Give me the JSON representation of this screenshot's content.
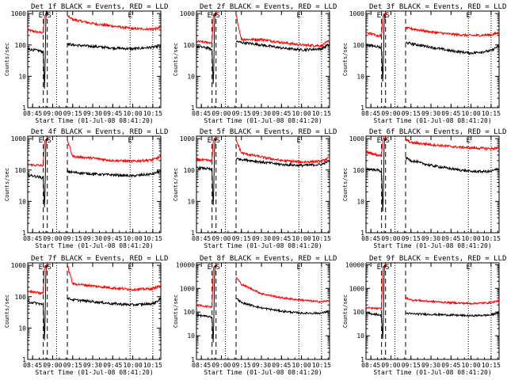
{
  "panels": [
    {
      "title": "Det 1f BLACK = Events, RED = LLD",
      "xlabel": "Start Time (01-Jul-08 08:41:20)",
      "ylabel": "Counts/sec",
      "xticks": [
        "08:45",
        "09:00",
        "09:15",
        "09:30",
        "09:45",
        "10:00",
        "10:15"
      ],
      "yticks": [
        "1",
        "10",
        "100",
        "1000"
      ],
      "markers": [
        "E",
        "S",
        "E"
      ]
    },
    {
      "title": "Det 2f BLACK = Events, RED = LLD",
      "xlabel": "Start Time (01-Jul-08 08:41:20)",
      "ylabel": "Counts/sec",
      "xticks": [
        "08:45",
        "09:00",
        "09:15",
        "09:30",
        "09:45",
        "10:00",
        "10:15"
      ],
      "yticks": [
        "1",
        "10",
        "100",
        "1000"
      ],
      "markers": [
        "E",
        "S",
        "E"
      ]
    },
    {
      "title": "Det 3f BLACK = Events, RED = LLD",
      "xlabel": "Start Time (01-Jul-08 08:41:20)",
      "ylabel": "Counts/sec",
      "xticks": [
        "08:45",
        "09:00",
        "09:15",
        "09:30",
        "09:45",
        "10:00",
        "10:15"
      ],
      "yticks": [
        "1",
        "10",
        "100",
        "1000"
      ],
      "markers": [
        "E",
        "S",
        "E"
      ]
    },
    {
      "title": "Det 4f BLACK = Events, RED = LLD",
      "xlabel": "Start Time (01-Jul-08 08:41:20)",
      "ylabel": "Counts/sec",
      "xticks": [
        "08:45",
        "09:00",
        "09:15",
        "09:30",
        "09:45",
        "10:00",
        "10:15"
      ],
      "yticks": [
        "1",
        "10",
        "100",
        "1000"
      ],
      "markers": [
        "E",
        "S",
        "E"
      ]
    },
    {
      "title": "Det 5f BLACK = Events, RED = LLD",
      "xlabel": "Start Time (01-Jul-08 08:41:20)",
      "ylabel": "Counts/sec",
      "xticks": [
        "08:45",
        "09:00",
        "09:15",
        "09:30",
        "09:45",
        "10:00",
        "10:15"
      ],
      "yticks": [
        "1",
        "10",
        "100",
        "1000"
      ],
      "markers": [
        "E",
        "S",
        "E"
      ]
    },
    {
      "title": "Det 6f BLACK = Events, RED = LLD",
      "xlabel": "Start Time (01-Jul-08 08:41:20)",
      "ylabel": "Counts/sec",
      "xticks": [
        "08:45",
        "09:00",
        "09:15",
        "09:30",
        "09:45",
        "10:00",
        "10:15"
      ],
      "yticks": [
        "1",
        "10",
        "100",
        "1000"
      ],
      "markers": [
        "E",
        "S",
        "E"
      ]
    },
    {
      "title": "Det 7f BLACK = Events, RED = LLD",
      "xlabel": "Start Time (01-Jul-08 08:41:20)",
      "ylabel": "Counts/sec",
      "xticks": [
        "08:45",
        "09:00",
        "09:15",
        "09:30",
        "09:45",
        "10:00",
        "10:15"
      ],
      "yticks": [
        "1",
        "10",
        "100",
        "1000"
      ],
      "markers": [
        "E",
        "S",
        "E"
      ]
    },
    {
      "title": "Det 8f BLACK = Events, RED = LLD",
      "xlabel": "Start Time (01-Jul-08 08:41:20)",
      "ylabel": "Counts/sec",
      "xticks": [
        "08:45",
        "09:00",
        "09:15",
        "09:30",
        "09:45",
        "10:00",
        "10:15"
      ],
      "yticks": [
        "1",
        "10",
        "100",
        "1000",
        "10000"
      ],
      "markers": [
        "E",
        "S",
        "E"
      ]
    },
    {
      "title": "Det 9f BLACK = Events, RED = LLD",
      "xlabel": "Start Time (01-Jul-08 08:41:20)",
      "ylabel": "Counts/sec",
      "xticks": [
        "08:45",
        "09:00",
        "09:15",
        "09:30",
        "09:45",
        "10:00",
        "10:15"
      ],
      "yticks": [
        "1",
        "10",
        "100",
        "1000",
        "10000"
      ],
      "markers": [
        "E",
        "S",
        "E"
      ]
    }
  ],
  "colors": {
    "events": "#000000",
    "lld": "#ff0000",
    "axes": "#000000",
    "background": "#ffffff"
  },
  "chart_data": [
    {
      "type": "line",
      "title": "Det 1f BLACK = Events, RED = LLD",
      "xlabel": "Start Time (01-Jul-08 08:41:20)",
      "ylabel": "Counts/sec",
      "yscale": "log",
      "xlim": [
        "08:41",
        "10:21"
      ],
      "ylim": [
        1,
        1200
      ],
      "grid": false,
      "vlines_dashed": [
        "08:53",
        "08:56",
        "09:11"
      ],
      "vlines_dotted": [
        "09:03",
        "09:58",
        "10:15"
      ],
      "series": [
        {
          "name": "LLD",
          "color": "#ff0000",
          "x": [
            "08:41",
            "08:50",
            "08:53",
            "08:54",
            "08:56",
            "09:11",
            "09:15",
            "09:30",
            "09:45",
            "10:00",
            "10:15",
            "10:20"
          ],
          "values": [
            300,
            250,
            250,
            900,
            1000,
            850,
            650,
            480,
            400,
            330,
            320,
            350
          ]
        },
        {
          "name": "Events",
          "color": "#000000",
          "x": [
            "08:41",
            "08:50",
            "08:53",
            "08:54",
            "08:55",
            "08:56",
            "09:11",
            "09:15",
            "09:30",
            "09:45",
            "10:00",
            "10:15",
            "10:20"
          ],
          "values": [
            75,
            65,
            60,
            3,
            1100,
            1000,
            110,
            100,
            90,
            80,
            75,
            85,
            90
          ]
        }
      ]
    },
    {
      "type": "line",
      "title": "Det 2f BLACK = Events, RED = LLD",
      "xlabel": "Start Time (01-Jul-08 08:41:20)",
      "ylabel": "Counts/sec",
      "yscale": "log",
      "xlim": [
        "08:41",
        "10:21"
      ],
      "ylim": [
        1,
        1200
      ],
      "grid": false,
      "vlines_dashed": [
        "08:53",
        "08:56",
        "09:11"
      ],
      "vlines_dotted": [
        "09:03",
        "09:58",
        "10:15"
      ],
      "series": [
        {
          "name": "LLD",
          "color": "#ff0000",
          "x": [
            "08:41",
            "08:50",
            "08:53",
            "08:54",
            "08:56",
            "09:11",
            "09:15",
            "09:30",
            "09:45",
            "10:00",
            "10:15",
            "10:20"
          ],
          "values": [
            130,
            120,
            120,
            900,
            1000,
            900,
            150,
            150,
            120,
            100,
            95,
            130
          ]
        },
        {
          "name": "Events",
          "color": "#000000",
          "x": [
            "08:41",
            "08:50",
            "08:53",
            "08:54",
            "08:55",
            "08:56",
            "09:11",
            "09:15",
            "09:30",
            "09:45",
            "10:00",
            "10:15",
            "10:20"
          ],
          "values": [
            90,
            80,
            70,
            4,
            1000,
            900,
            130,
            120,
            100,
            80,
            70,
            75,
            100
          ]
        }
      ]
    },
    {
      "type": "line",
      "title": "Det 3f BLACK = Events, RED = LLD",
      "xlabel": "Start Time (01-Jul-08 08:41:20)",
      "ylabel": "Counts/sec",
      "yscale": "log",
      "xlim": [
        "08:41",
        "10:21"
      ],
      "ylim": [
        1,
        1200
      ],
      "grid": false,
      "vlines_dashed": [
        "08:53",
        "08:56",
        "09:11"
      ],
      "vlines_dotted": [
        "09:03",
        "09:58",
        "10:15"
      ],
      "series": [
        {
          "name": "LLD",
          "color": "#ff0000",
          "x": [
            "08:41",
            "08:50",
            "08:53",
            "08:54",
            "08:56",
            "09:11",
            "09:15",
            "09:30",
            "09:45",
            "10:00",
            "10:15",
            "10:20"
          ],
          "values": [
            250,
            200,
            200,
            900,
            1000,
            350,
            330,
            260,
            220,
            200,
            210,
            240
          ]
        },
        {
          "name": "Events",
          "color": "#000000",
          "x": [
            "08:41",
            "08:50",
            "08:53",
            "08:54",
            "08:55",
            "08:56",
            "09:11",
            "09:15",
            "09:30",
            "09:45",
            "10:00",
            "10:15",
            "10:20"
          ],
          "values": [
            100,
            90,
            80,
            5,
            900,
            800,
            120,
            110,
            85,
            65,
            55,
            65,
            90
          ]
        }
      ]
    },
    {
      "type": "line",
      "title": "Det 4f BLACK = Events, RED = LLD",
      "xlabel": "Start Time (01-Jul-08 08:41:20)",
      "ylabel": "Counts/sec",
      "yscale": "log",
      "xlim": [
        "08:41",
        "10:21"
      ],
      "ylim": [
        1,
        1200
      ],
      "grid": false,
      "vlines_dashed": [
        "08:53",
        "08:56",
        "09:11"
      ],
      "vlines_dotted": [
        "09:03",
        "09:58",
        "10:15"
      ],
      "series": [
        {
          "name": "LLD",
          "color": "#ff0000",
          "x": [
            "08:41",
            "08:50",
            "08:53",
            "08:54",
            "08:56",
            "09:11",
            "09:15",
            "09:30",
            "09:45",
            "10:00",
            "10:15",
            "10:20"
          ],
          "values": [
            150,
            140,
            140,
            800,
            1000,
            900,
            270,
            240,
            200,
            190,
            210,
            260
          ]
        },
        {
          "name": "Events",
          "color": "#000000",
          "x": [
            "08:41",
            "08:50",
            "08:53",
            "08:54",
            "08:55",
            "08:56",
            "09:11",
            "09:15",
            "09:30",
            "09:45",
            "10:00",
            "10:15",
            "10:20"
          ],
          "values": [
            70,
            60,
            55,
            5,
            1000,
            900,
            90,
            85,
            75,
            70,
            65,
            75,
            90
          ]
        }
      ]
    },
    {
      "type": "line",
      "title": "Det 5f BLACK = Events, RED = LLD",
      "xlabel": "Start Time (01-Jul-08 08:41:20)",
      "ylabel": "Counts/sec",
      "yscale": "log",
      "xlim": [
        "08:41",
        "10:21"
      ],
      "ylim": [
        1,
        1200
      ],
      "grid": false,
      "vlines_dashed": [
        "08:53",
        "08:56",
        "09:11"
      ],
      "vlines_dotted": [
        "09:03",
        "09:58",
        "10:15"
      ],
      "series": [
        {
          "name": "LLD",
          "color": "#ff0000",
          "x": [
            "08:41",
            "08:50",
            "08:53",
            "08:54",
            "08:56",
            "09:11",
            "09:15",
            "09:30",
            "09:45",
            "10:00",
            "10:15",
            "10:20"
          ],
          "values": [
            220,
            200,
            200,
            900,
            1000,
            900,
            350,
            260,
            200,
            180,
            190,
            240
          ]
        },
        {
          "name": "Events",
          "color": "#000000",
          "x": [
            "08:41",
            "08:50",
            "08:53",
            "08:54",
            "08:55",
            "08:56",
            "09:11",
            "09:15",
            "09:30",
            "09:45",
            "10:00",
            "10:15",
            "10:20"
          ],
          "values": [
            120,
            110,
            100,
            5,
            1000,
            900,
            230,
            220,
            180,
            150,
            140,
            150,
            190
          ]
        }
      ]
    },
    {
      "type": "line",
      "title": "Det 6f BLACK = Events, RED = LLD",
      "xlabel": "Start Time (01-Jul-08 08:41:20)",
      "ylabel": "Counts/sec",
      "yscale": "log",
      "xlim": [
        "08:41",
        "10:21"
      ],
      "ylim": [
        1,
        1200
      ],
      "grid": false,
      "vlines_dashed": [
        "08:53",
        "08:56",
        "09:11"
      ],
      "vlines_dotted": [
        "09:03",
        "09:58",
        "10:15"
      ],
      "series": [
        {
          "name": "LLD",
          "color": "#ff0000",
          "x": [
            "08:41",
            "08:50",
            "08:53",
            "08:54",
            "08:56",
            "09:11",
            "09:15",
            "09:30",
            "09:45",
            "10:00",
            "10:15",
            "10:20"
          ],
          "values": [
            380,
            300,
            300,
            1000,
            1100,
            950,
            750,
            650,
            560,
            510,
            480,
            500
          ]
        },
        {
          "name": "Events",
          "color": "#000000",
          "x": [
            "08:41",
            "08:50",
            "08:53",
            "08:54",
            "08:55",
            "08:56",
            "09:11",
            "09:15",
            "09:30",
            "09:45",
            "10:00",
            "10:15",
            "10:20"
          ],
          "values": [
            110,
            100,
            90,
            3,
            1000,
            900,
            250,
            200,
            140,
            110,
            90,
            90,
            110
          ]
        }
      ]
    },
    {
      "type": "line",
      "title": "Det 7f BLACK = Events, RED = LLD",
      "xlabel": "Start Time (01-Jul-08 08:41:20)",
      "ylabel": "Counts/sec",
      "yscale": "log",
      "xlim": [
        "08:41",
        "10:21"
      ],
      "ylim": [
        1,
        1200
      ],
      "grid": false,
      "vlines_dashed": [
        "08:53",
        "08:56",
        "09:11"
      ],
      "vlines_dotted": [
        "09:03",
        "09:58",
        "10:15"
      ],
      "series": [
        {
          "name": "LLD",
          "color": "#ff0000",
          "x": [
            "08:41",
            "08:50",
            "08:53",
            "08:54",
            "08:56",
            "09:11",
            "09:15",
            "09:30",
            "09:45",
            "10:00",
            "10:15",
            "10:20"
          ],
          "values": [
            150,
            130,
            130,
            900,
            1100,
            1000,
            260,
            220,
            190,
            170,
            180,
            220
          ]
        },
        {
          "name": "Events",
          "color": "#000000",
          "x": [
            "08:41",
            "08:50",
            "08:53",
            "08:54",
            "08:55",
            "08:56",
            "09:11",
            "09:15",
            "09:30",
            "09:45",
            "10:00",
            "10:15",
            "10:20"
          ],
          "values": [
            70,
            60,
            55,
            3,
            1000,
            900,
            90,
            80,
            70,
            60,
            55,
            60,
            80
          ]
        }
      ]
    },
    {
      "type": "line",
      "title": "Det 8f BLACK = Events, RED = LLD",
      "xlabel": "Start Time (01-Jul-08 08:41:20)",
      "ylabel": "Counts/sec",
      "yscale": "log",
      "xlim": [
        "08:41",
        "10:21"
      ],
      "ylim": [
        1,
        12000
      ],
      "grid": false,
      "vlines_dashed": [
        "08:53",
        "08:56",
        "09:11"
      ],
      "vlines_dotted": [
        "09:03",
        "09:58",
        "10:15"
      ],
      "series": [
        {
          "name": "LLD",
          "color": "#ff0000",
          "x": [
            "08:41",
            "08:50",
            "08:53",
            "08:54",
            "08:56",
            "09:11",
            "09:15",
            "09:30",
            "09:45",
            "10:00",
            "10:15",
            "10:20"
          ],
          "values": [
            200,
            170,
            170,
            8000,
            10000,
            3000,
            1500,
            600,
            400,
            320,
            270,
            300
          ]
        },
        {
          "name": "Events",
          "color": "#000000",
          "x": [
            "08:41",
            "08:50",
            "08:53",
            "08:54",
            "08:55",
            "08:56",
            "09:11",
            "09:15",
            "09:30",
            "09:45",
            "10:00",
            "10:15",
            "10:20"
          ],
          "values": [
            75,
            65,
            60,
            4,
            9000,
            8000,
            400,
            250,
            150,
            110,
            90,
            90,
            110
          ]
        }
      ]
    },
    {
      "type": "line",
      "title": "Det 9f BLACK = Events, RED = LLD",
      "xlabel": "Start Time (01-Jul-08 08:41:20)",
      "ylabel": "Counts/sec",
      "yscale": "log",
      "xlim": [
        "08:41",
        "10:21"
      ],
      "ylim": [
        1,
        12000
      ],
      "grid": false,
      "vlines_dashed": [
        "08:53",
        "08:56",
        "09:11"
      ],
      "vlines_dotted": [
        "09:03",
        "09:58",
        "10:15"
      ],
      "series": [
        {
          "name": "LLD",
          "color": "#ff0000",
          "x": [
            "08:41",
            "08:50",
            "08:53",
            "08:54",
            "08:56",
            "09:11",
            "09:15",
            "09:30",
            "09:45",
            "10:00",
            "10:15",
            "10:20"
          ],
          "values": [
            150,
            140,
            140,
            8000,
            10000,
            400,
            330,
            280,
            250,
            230,
            250,
            300
          ]
        },
        {
          "name": "Events",
          "color": "#000000",
          "x": [
            "08:41",
            "08:50",
            "08:53",
            "08:54",
            "08:55",
            "08:56",
            "09:11",
            "09:15",
            "09:30",
            "09:45",
            "10:00",
            "10:15",
            "10:20"
          ],
          "values": [
            90,
            80,
            70,
            5,
            9000,
            8000,
            90,
            85,
            80,
            75,
            70,
            75,
            95
          ]
        }
      ]
    }
  ]
}
